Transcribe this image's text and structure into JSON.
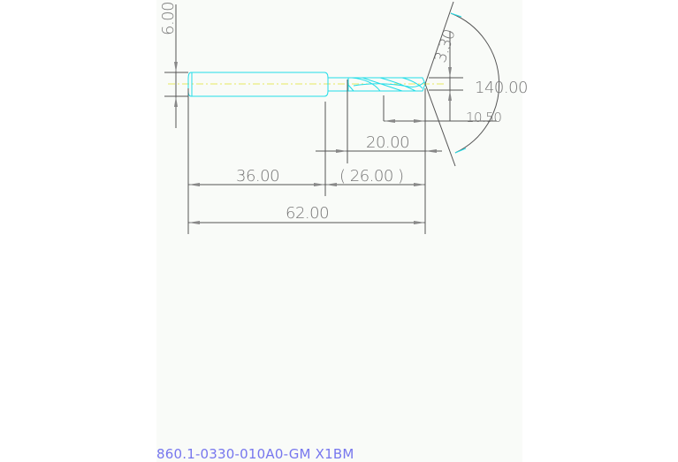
{
  "drawing": {
    "part_number": "860.1-0330-010A0-GM X1BM",
    "dimensions": {
      "shank_diameter": "6.00",
      "drill_diameter": "3.30",
      "point_angle": "140.00",
      "dim_10_50": "10.50",
      "dim_20_00": "20.00",
      "shank_length": "36.00",
      "flute_length": "( 26.00 )",
      "overall_length": "62.00"
    },
    "colors": {
      "tool_outline": "#22dde8",
      "centerline": "#e8e860",
      "dimension_lines": "#555555",
      "part_number": "#7777ee",
      "background": "#f9fbf8"
    }
  }
}
